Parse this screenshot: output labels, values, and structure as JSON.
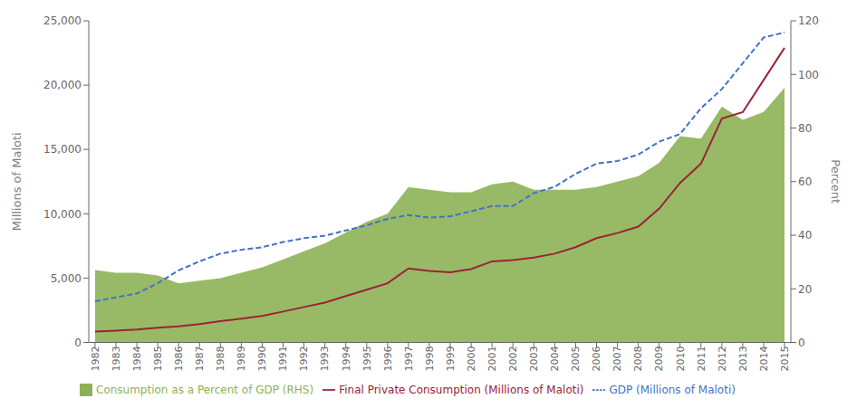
{
  "chart_data": {
    "type": "line",
    "x": [
      1982,
      1983,
      1984,
      1985,
      1986,
      1987,
      1988,
      1989,
      1990,
      1991,
      1992,
      1993,
      1994,
      1995,
      1996,
      1997,
      1998,
      1999,
      2000,
      2001,
      2002,
      2003,
      2004,
      2005,
      2006,
      2007,
      2008,
      2009,
      2010,
      2011,
      2012,
      2013,
      2014,
      2015
    ],
    "xlim": [
      1981.7,
      2015.3
    ],
    "xticks": [
      1982,
      1983,
      1984,
      1985,
      1986,
      1987,
      1988,
      1989,
      1990,
      1991,
      1992,
      1993,
      1994,
      1995,
      1996,
      1997,
      1998,
      1999,
      2000,
      2001,
      2002,
      2003,
      2004,
      2005,
      2006,
      2007,
      2008,
      2009,
      2010,
      2011,
      2012,
      2013,
      2014,
      2015
    ],
    "ylabel": "Millions of Maloti",
    "ylim": [
      0,
      25000
    ],
    "yticks": [
      0,
      {
        "value": 5000,
        "label": "5,000"
      },
      {
        "value": 10000,
        "label": "10,000"
      },
      {
        "value": 15000,
        "label": "15,000"
      },
      {
        "value": 20000,
        "label": "20,000"
      },
      {
        "value": 25000,
        "label": "25,000"
      }
    ],
    "y2label": "Percent",
    "y2lim": [
      0,
      120
    ],
    "y2ticks": [
      0,
      20,
      40,
      60,
      80,
      100,
      120
    ],
    "grid": false,
    "legend": "lower left",
    "series": [
      {
        "name": "Consumption as a Percent of GDP (RHS)",
        "type": "area",
        "color": "#8DB255",
        "axis": "y2",
        "values": [
          27,
          26,
          26,
          25,
          22,
          23,
          24,
          26,
          28,
          31,
          34,
          37,
          41,
          45,
          48,
          58,
          57,
          56,
          56,
          59,
          60,
          57,
          57,
          57,
          58,
          60,
          62,
          67,
          77,
          76,
          88,
          83,
          86,
          95
        ]
      },
      {
        "name": "GDP (Millions of Maloti)",
        "type": "line",
        "line_style": "dashed",
        "color": "#4472C4",
        "values": [
          3200,
          3500,
          3800,
          4600,
          5600,
          6300,
          6900,
          7200,
          7400,
          7800,
          8100,
          8300,
          8700,
          9100,
          9600,
          9900,
          9700,
          9800,
          10200,
          10600,
          10600,
          11600,
          12100,
          13100,
          13900,
          14100,
          14600,
          15600,
          16200,
          18200,
          19700,
          21700,
          23700,
          24100
        ]
      },
      {
        "name": "Final Private Consumption (Millions of Maloti)",
        "type": "line",
        "line_style": "solid",
        "color": "#9B2335",
        "values": [
          850,
          920,
          1000,
          1150,
          1250,
          1420,
          1650,
          1850,
          2050,
          2400,
          2750,
          3100,
          3600,
          4100,
          4600,
          5750,
          5550,
          5450,
          5700,
          6300,
          6400,
          6600,
          6900,
          7400,
          8100,
          8500,
          9000,
          10400,
          12400,
          13900,
          17400,
          17900,
          20400,
          22900
        ]
      }
    ]
  }
}
